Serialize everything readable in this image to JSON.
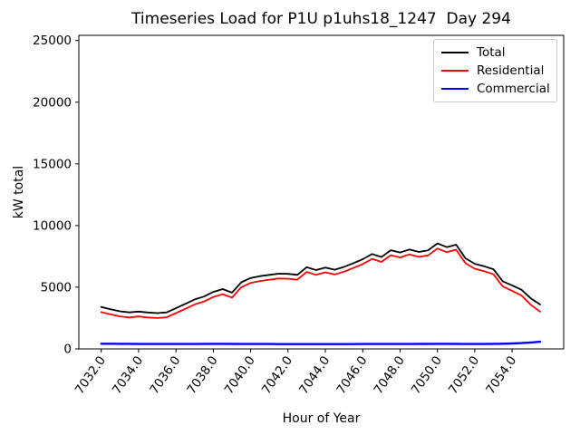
{
  "figure": {
    "background": "#ffffff",
    "spine_color": "#000000",
    "legend_border_color": "#c7c7c7"
  },
  "chart_data": {
    "type": "line",
    "title": "Timeseries Load for P1U p1uhs18_1247  Day 294",
    "xlabel": "Hour of Year",
    "ylabel": "kW total",
    "legend_position": "upper right",
    "grid": false,
    "xlim": [
      7030.8,
      7056.76
    ],
    "ylim": [
      0,
      25420
    ],
    "y_ticks": [
      0,
      5000,
      10000,
      15000,
      20000,
      25000
    ],
    "x_ticks": [
      "7032.0",
      "7034.0",
      "7036.0",
      "7038.0",
      "7040.0",
      "7042.0",
      "7044.0",
      "7046.0",
      "7048.0",
      "7050.0",
      "7052.0",
      "7054.0"
    ],
    "x_tick_rotation_deg": 55,
    "x": [
      7032.0,
      7032.5,
      7033.0,
      7033.5,
      7034.0,
      7034.5,
      7035.0,
      7035.5,
      7036.0,
      7036.5,
      7037.0,
      7037.5,
      7038.0,
      7038.5,
      7039.0,
      7039.5,
      7040.0,
      7040.5,
      7041.0,
      7041.5,
      7042.0,
      7042.5,
      7043.0,
      7043.5,
      7044.0,
      7044.5,
      7045.0,
      7045.5,
      7046.0,
      7046.5,
      7047.0,
      7047.5,
      7048.0,
      7048.5,
      7049.0,
      7049.5,
      7050.0,
      7050.5,
      7051.0,
      7051.5,
      7052.0,
      7052.5,
      7053.0,
      7053.5,
      7054.0,
      7054.5,
      7055.0,
      7055.5
    ],
    "series": [
      {
        "name": "Total",
        "color": "#000000",
        "width": 1.8,
        "values": [
          3400,
          3220,
          3050,
          2960,
          3030,
          2950,
          2900,
          2960,
          3300,
          3650,
          4010,
          4250,
          4620,
          4850,
          4560,
          5400,
          5750,
          5900,
          6000,
          6100,
          6080,
          6000,
          6630,
          6390,
          6600,
          6420,
          6650,
          6950,
          7270,
          7690,
          7450,
          8000,
          7815,
          8060,
          7860,
          7990,
          8550,
          8250,
          8450,
          7350,
          6900,
          6700,
          6460,
          5480,
          5150,
          4800,
          4100,
          3600
        ]
      },
      {
        "name": "Residential",
        "color": "#ff0000",
        "width": 1.8,
        "values": [
          2980,
          2800,
          2640,
          2550,
          2630,
          2550,
          2505,
          2565,
          2905,
          3250,
          3610,
          3845,
          4210,
          4440,
          4155,
          5000,
          5350,
          5500,
          5605,
          5710,
          5690,
          5610,
          6240,
          6000,
          6210,
          6030,
          6260,
          6560,
          6875,
          7295,
          7055,
          7600,
          7415,
          7660,
          7455,
          7585,
          8140,
          7840,
          8045,
          6950,
          6500,
          6300,
          6050,
          5060,
          4710,
          4330,
          3580,
          3020
        ]
      },
      {
        "name": "Commercial",
        "color": "#0000ff",
        "width": 2.4,
        "values": [
          420,
          420,
          410,
          410,
          400,
          400,
          395,
          395,
          395,
          400,
          400,
          405,
          410,
          410,
          405,
          400,
          400,
          400,
          395,
          390,
          390,
          390,
          390,
          390,
          390,
          390,
          390,
          390,
          395,
          395,
          395,
          400,
          400,
          400,
          405,
          405,
          410,
          410,
          405,
          400,
          400,
          400,
          410,
          420,
          440,
          470,
          520,
          580
        ]
      }
    ]
  }
}
